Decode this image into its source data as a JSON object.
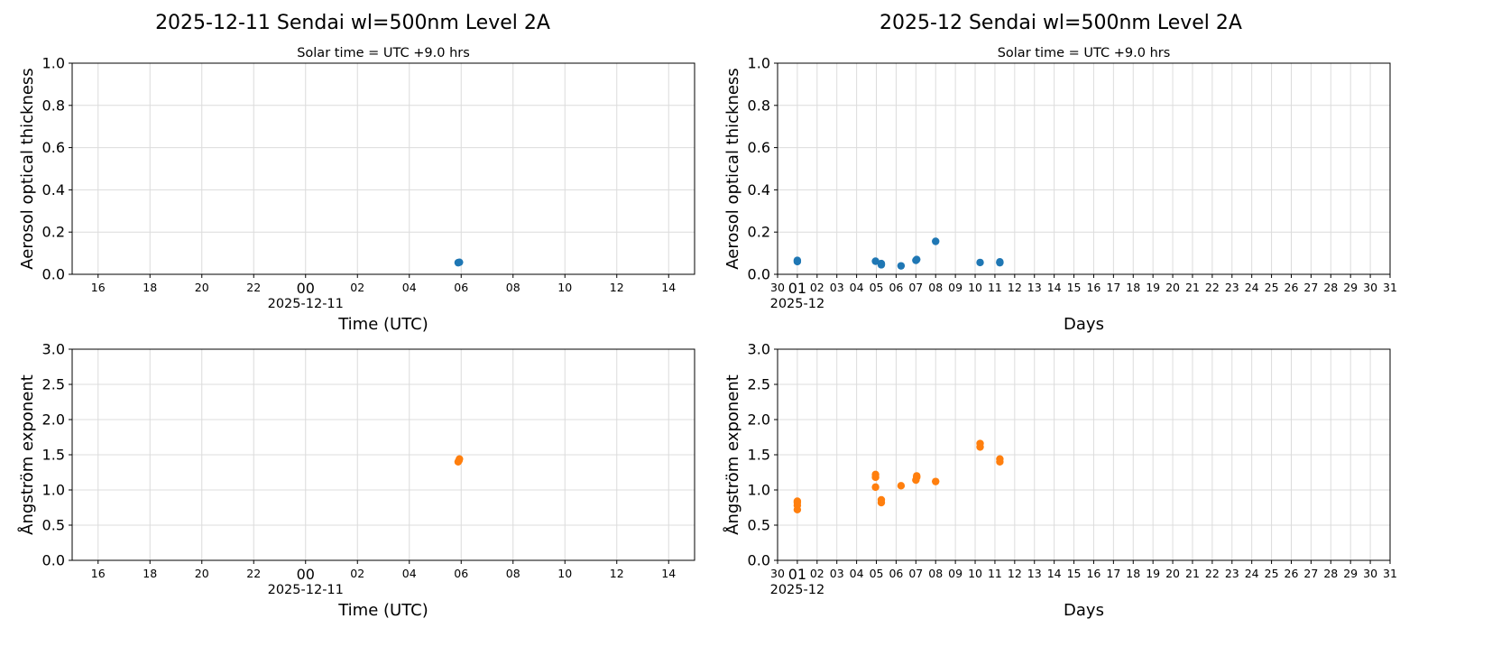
{
  "chart_data": [
    {
      "type": "scatter",
      "title": "2025-12-11  Sendai  wl=500nm  Level 2A",
      "subtitle": "Solar time = UTC +9.0 hrs",
      "xlabel": "Time (UTC)",
      "ylabel": "Aerosol optical thickness",
      "xlim": [
        "2025-12-10 15:00",
        "2025-12-11 15:00"
      ],
      "ylim": [
        0,
        1.0
      ],
      "yticks": [
        "0.0",
        "0.2",
        "0.4",
        "0.6",
        "0.8",
        "1.0"
      ],
      "xticks": [
        "16",
        "18",
        "20",
        "22",
        "00",
        "02",
        "04",
        "06",
        "08",
        "10",
        "12",
        "14"
      ],
      "xtick_times": [
        "2025-12-10 16:00",
        "2025-12-10 18:00",
        "2025-12-10 20:00",
        "2025-12-10 22:00",
        "2025-12-11 00:00",
        "2025-12-11 02:00",
        "2025-12-11 04:00",
        "2025-12-11 06:00",
        "2025-12-11 08:00",
        "2025-12-11 10:00",
        "2025-12-11 12:00",
        "2025-12-11 14:00"
      ],
      "major_tick_label": "00",
      "date_label": "2025-12-11",
      "grid": true,
      "color": "#1f77b4",
      "points": [
        [
          "2025-12-11 05:53",
          0.055
        ],
        [
          "2025-12-11 05:56",
          0.057
        ]
      ]
    },
    {
      "type": "scatter",
      "title": "2025-12  Sendai  wl=500nm  Level 2A",
      "subtitle": "Solar time = UTC +9.0 hrs",
      "xlabel": "Days",
      "ylabel": "Aerosol optical thickness",
      "xlim": [
        "2025-11-30 00:00",
        "2025-12-31 00:00"
      ],
      "ylim": [
        0,
        1.0
      ],
      "yticks": [
        "0.0",
        "0.2",
        "0.4",
        "0.6",
        "0.8",
        "1.0"
      ],
      "xticks": [
        "30",
        "01",
        "02",
        "03",
        "04",
        "05",
        "06",
        "07",
        "08",
        "09",
        "10",
        "11",
        "12",
        "13",
        "14",
        "15",
        "16",
        "17",
        "18",
        "19",
        "20",
        "21",
        "22",
        "23",
        "24",
        "25",
        "26",
        "27",
        "28",
        "29",
        "30",
        "31"
      ],
      "major_tick_label": "01",
      "date_label": "2025-12",
      "grid": true,
      "color": "#1f77b4",
      "points": [
        [
          "2025-12-01 00:00",
          0.06
        ],
        [
          "2025-12-01 00:00",
          0.066
        ],
        [
          "2025-12-04 23:00",
          0.062
        ],
        [
          "2025-12-05 06:00",
          0.045
        ],
        [
          "2025-12-05 06:00",
          0.051
        ],
        [
          "2025-12-06 06:00",
          0.04
        ],
        [
          "2025-12-07 00:00",
          0.066
        ],
        [
          "2025-12-07 01:00",
          0.07
        ],
        [
          "2025-12-08 00:00",
          0.156
        ],
        [
          "2025-12-10 06:00",
          0.056
        ],
        [
          "2025-12-11 06:00",
          0.055
        ],
        [
          "2025-12-11 06:00",
          0.059
        ]
      ]
    },
    {
      "type": "scatter",
      "xlabel": "Time (UTC)",
      "ylabel": "Ångström exponent",
      "xlim": [
        "2025-12-10 15:00",
        "2025-12-11 15:00"
      ],
      "ylim": [
        0,
        3.0
      ],
      "yticks": [
        "0.0",
        "0.5",
        "1.0",
        "1.5",
        "2.0",
        "2.5",
        "3.0"
      ],
      "xticks": [
        "16",
        "18",
        "20",
        "22",
        "00",
        "02",
        "04",
        "06",
        "08",
        "10",
        "12",
        "14"
      ],
      "xtick_times": [
        "2025-12-10 16:00",
        "2025-12-10 18:00",
        "2025-12-10 20:00",
        "2025-12-10 22:00",
        "2025-12-11 00:00",
        "2025-12-11 02:00",
        "2025-12-11 04:00",
        "2025-12-11 06:00",
        "2025-12-11 08:00",
        "2025-12-11 10:00",
        "2025-12-11 12:00",
        "2025-12-11 14:00"
      ],
      "major_tick_label": "00",
      "date_label": "2025-12-11",
      "grid": true,
      "color": "#ff7f0e",
      "points": [
        [
          "2025-12-11 05:53",
          1.4
        ],
        [
          "2025-12-11 05:55",
          1.42
        ],
        [
          "2025-12-11 05:56",
          1.44
        ]
      ]
    },
    {
      "type": "scatter",
      "xlabel": "Days",
      "ylabel": "Ångström exponent",
      "xlim": [
        "2025-11-30 00:00",
        "2025-12-31 00:00"
      ],
      "ylim": [
        0,
        3.0
      ],
      "yticks": [
        "0.0",
        "0.5",
        "1.0",
        "1.5",
        "2.0",
        "2.5",
        "3.0"
      ],
      "xticks": [
        "30",
        "01",
        "02",
        "03",
        "04",
        "05",
        "06",
        "07",
        "08",
        "09",
        "10",
        "11",
        "12",
        "13",
        "14",
        "15",
        "16",
        "17",
        "18",
        "19",
        "20",
        "21",
        "22",
        "23",
        "24",
        "25",
        "26",
        "27",
        "28",
        "29",
        "30",
        "31"
      ],
      "major_tick_label": "01",
      "date_label": "2025-12",
      "grid": true,
      "color": "#ff7f0e",
      "points": [
        [
          "2025-12-01 00:00",
          0.72
        ],
        [
          "2025-12-01 00:00",
          0.78
        ],
        [
          "2025-12-01 00:00",
          0.82
        ],
        [
          "2025-12-01 00:00",
          0.84
        ],
        [
          "2025-12-04 23:00",
          1.04
        ],
        [
          "2025-12-04 23:00",
          1.18
        ],
        [
          "2025-12-04 23:00",
          1.22
        ],
        [
          "2025-12-05 06:00",
          0.82
        ],
        [
          "2025-12-05 06:00",
          0.86
        ],
        [
          "2025-12-06 06:00",
          1.06
        ],
        [
          "2025-12-07 00:00",
          1.14
        ],
        [
          "2025-12-07 01:00",
          1.18
        ],
        [
          "2025-12-07 01:00",
          1.2
        ],
        [
          "2025-12-08 00:00",
          1.12
        ],
        [
          "2025-12-10 06:00",
          1.61
        ],
        [
          "2025-12-10 06:00",
          1.66
        ],
        [
          "2025-12-11 06:00",
          1.4
        ],
        [
          "2025-12-11 06:00",
          1.44
        ]
      ]
    }
  ]
}
